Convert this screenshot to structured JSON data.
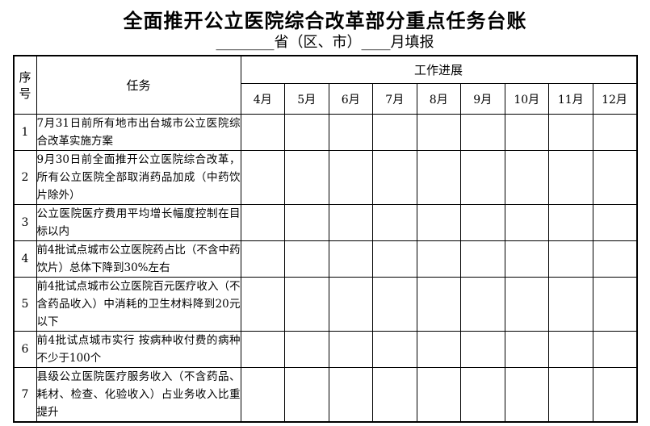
{
  "document": {
    "title": "全面推开公立医院综合改革部分重点任务台账",
    "subtitle": "________省（区、市）____月填报"
  },
  "table": {
    "header": {
      "index_label": "序号",
      "task_label": "任务",
      "progress_label": "工作进展"
    },
    "months": [
      "4月",
      "5月",
      "6月",
      "7月",
      "8月",
      "9月",
      "10月",
      "11月",
      "12月"
    ],
    "rows": [
      {
        "no": "1",
        "task": "7月31日前所有地市出台城市公立医院综合改革实施方案"
      },
      {
        "no": "2",
        "task": "9月30日前全面推开公立医院综合改革，所有公立医院全部取消药品加成（中药饮片除外）"
      },
      {
        "no": "3",
        "task": "公立医院医疗费用平均增长幅度控制在目标以内"
      },
      {
        "no": "4",
        "task": "前4批试点城市公立医院药占比（不含中药饮片）总体下降到30%左右"
      },
      {
        "no": "5",
        "task": "前4批试点城市公立医院百元医疗收入（不含药品收入）中消耗的卫生材料降到20元以下"
      },
      {
        "no": "6",
        "task": "前4批试点城市实行 按病种收付费的病种不少于100个"
      },
      {
        "no": "7",
        "task": "县级公立医院医疗服务收入（不含药品、耗材、检查、化验收入）占业务收入比重提升"
      }
    ]
  }
}
